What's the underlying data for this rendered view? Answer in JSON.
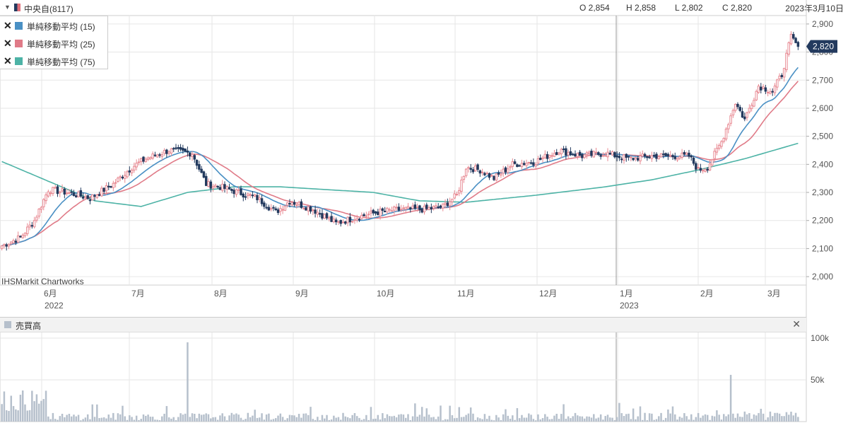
{
  "header": {
    "symbol": "中央自(8117)",
    "open": "O 2,854",
    "high": "H 2,858",
    "low": "L 2,802",
    "close": "C 2,820",
    "date": "2023年3月10日"
  },
  "legend": [
    {
      "label": "単純移動平均 (15)",
      "color": "#4a90c4"
    },
    {
      "label": "単純移動平均 (25)",
      "color": "#e07b88"
    },
    {
      "label": "単純移動平均 (75)",
      "color": "#4db3a6"
    }
  ],
  "credit": "IHSMarkit Chartworks",
  "volume_panel": {
    "label": "売買高",
    "close": "✕"
  },
  "colors": {
    "up": "#e88a93",
    "down": "#233a5e",
    "ma15": "#4a90c4",
    "ma25": "#e07b88",
    "ma75": "#4db3a6",
    "volume": "#b6c0cc"
  },
  "chart_data": [
    {
      "type": "candlestick",
      "yaxis": {
        "ticks": [
          "2,900",
          "2,800",
          "2,700",
          "2,600",
          "2,500",
          "2,400",
          "2,300",
          "2,200",
          "2,100",
          "2,000"
        ],
        "range": [
          1970,
          2930
        ]
      },
      "xaxis": {
        "months": [
          "6月",
          "7月",
          "8月",
          "9月",
          "10月",
          "11月",
          "12月",
          "1月",
          "2月",
          "3月"
        ],
        "years": [
          "2022",
          "2023"
        ]
      },
      "last_price_label": "2,820",
      "anchors": [
        [
          0,
          2110
        ],
        [
          8,
          2140
        ],
        [
          14,
          2200
        ],
        [
          20,
          2310
        ],
        [
          28,
          2300
        ],
        [
          38,
          2280
        ],
        [
          48,
          2330
        ],
        [
          56,
          2390
        ],
        [
          62,
          2420
        ],
        [
          72,
          2450
        ],
        [
          82,
          2440
        ],
        [
          88,
          2330
        ],
        [
          94,
          2320
        ],
        [
          102,
          2300
        ],
        [
          110,
          2280
        ],
        [
          118,
          2230
        ],
        [
          124,
          2270
        ],
        [
          134,
          2240
        ],
        [
          144,
          2190
        ],
        [
          152,
          2210
        ],
        [
          162,
          2230
        ],
        [
          172,
          2240
        ],
        [
          182,
          2240
        ],
        [
          190,
          2250
        ],
        [
          196,
          2290
        ],
        [
          200,
          2390
        ],
        [
          206,
          2380
        ],
        [
          212,
          2350
        ],
        [
          220,
          2400
        ],
        [
          230,
          2410
        ],
        [
          240,
          2450
        ],
        [
          250,
          2430
        ],
        [
          260,
          2440
        ],
        [
          270,
          2420
        ],
        [
          280,
          2430
        ],
        [
          290,
          2430
        ],
        [
          296,
          2430
        ],
        [
          300,
          2380
        ],
        [
          304,
          2390
        ],
        [
          310,
          2480
        ],
        [
          316,
          2620
        ],
        [
          320,
          2560
        ],
        [
          326,
          2680
        ],
        [
          332,
          2660
        ],
        [
          336,
          2720
        ],
        [
          340,
          2855
        ],
        [
          343,
          2820
        ]
      ],
      "ma75_anchors": [
        [
          0,
          2410
        ],
        [
          20,
          2340
        ],
        [
          40,
          2270
        ],
        [
          60,
          2250
        ],
        [
          80,
          2300
        ],
        [
          100,
          2320
        ],
        [
          120,
          2320
        ],
        [
          140,
          2310
        ],
        [
          160,
          2300
        ],
        [
          180,
          2270
        ],
        [
          200,
          2265
        ],
        [
          230,
          2290
        ],
        [
          260,
          2320
        ],
        [
          280,
          2345
        ],
        [
          300,
          2380
        ],
        [
          320,
          2420
        ],
        [
          343,
          2475
        ]
      ]
    },
    {
      "type": "bar",
      "name": "売買高",
      "yaxis": {
        "ticks": [
          "100k",
          "50k"
        ],
        "range": [
          0,
          100000
        ]
      },
      "spikes": [
        [
          80,
          95000
        ],
        [
          314,
          56000
        ],
        [
          320,
          12000
        ]
      ]
    }
  ]
}
